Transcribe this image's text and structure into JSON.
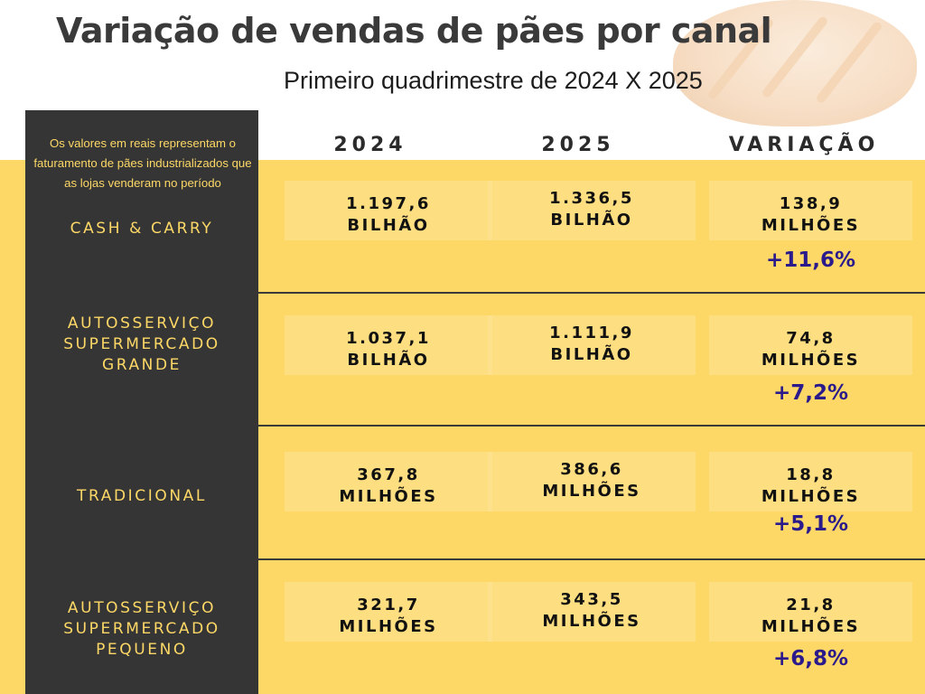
{
  "header": {
    "title": "Variação de vendas  de pães por canal",
    "subtitle": "Primeiro quadrimestre de 2024 X 2025"
  },
  "sidebar": {
    "note": "Os valores em reais representam o  faturamento de pães industrializados que as lojas venderam no período"
  },
  "colors": {
    "background_yellow": "#fdd866",
    "sidebar_dark": "#353535",
    "percentage_text": "#2a1a8c"
  },
  "chart_data": {
    "type": "table",
    "title": "Variação de vendas  de pães por canal",
    "subtitle": "Primeiro quadrimestre de 2024 X 2025",
    "columns": [
      "2024",
      "2025",
      "VARIAÇÃO"
    ],
    "rows": [
      {
        "channel": [
          "CASH & CARRY"
        ],
        "v2024": [
          "1.197,6",
          "BILHÃO"
        ],
        "v2025": [
          "1.336,5",
          "BILHÃO"
        ],
        "variation": [
          "138,9",
          "MILHÕES"
        ],
        "percent": "+11,6%"
      },
      {
        "channel": [
          "AUTOSSERVIÇO",
          "SUPERMERCADO",
          "GRANDE"
        ],
        "v2024": [
          "1.037,1",
          "BILHÃO"
        ],
        "v2025": [
          "1.111,9",
          "BILHÃO"
        ],
        "variation": [
          "74,8",
          "MILHÕES"
        ],
        "percent": "+7,2%"
      },
      {
        "channel": [
          "TRADICIONAL"
        ],
        "v2024": [
          "367,8",
          "MILHÕES"
        ],
        "v2025": [
          "386,6",
          "MILHÕES"
        ],
        "variation": [
          "18,8",
          "MILHÕES"
        ],
        "percent": "+5,1%"
      },
      {
        "channel": [
          "AUTOSSERVIÇO",
          "SUPERMERCADO",
          "PEQUENO"
        ],
        "v2024": [
          "321,7",
          "MILHÕES"
        ],
        "v2025": [
          "343,5",
          "MILHÕES"
        ],
        "variation": [
          "21,8",
          "MILHÕES"
        ],
        "percent": "+6,8%"
      }
    ]
  }
}
